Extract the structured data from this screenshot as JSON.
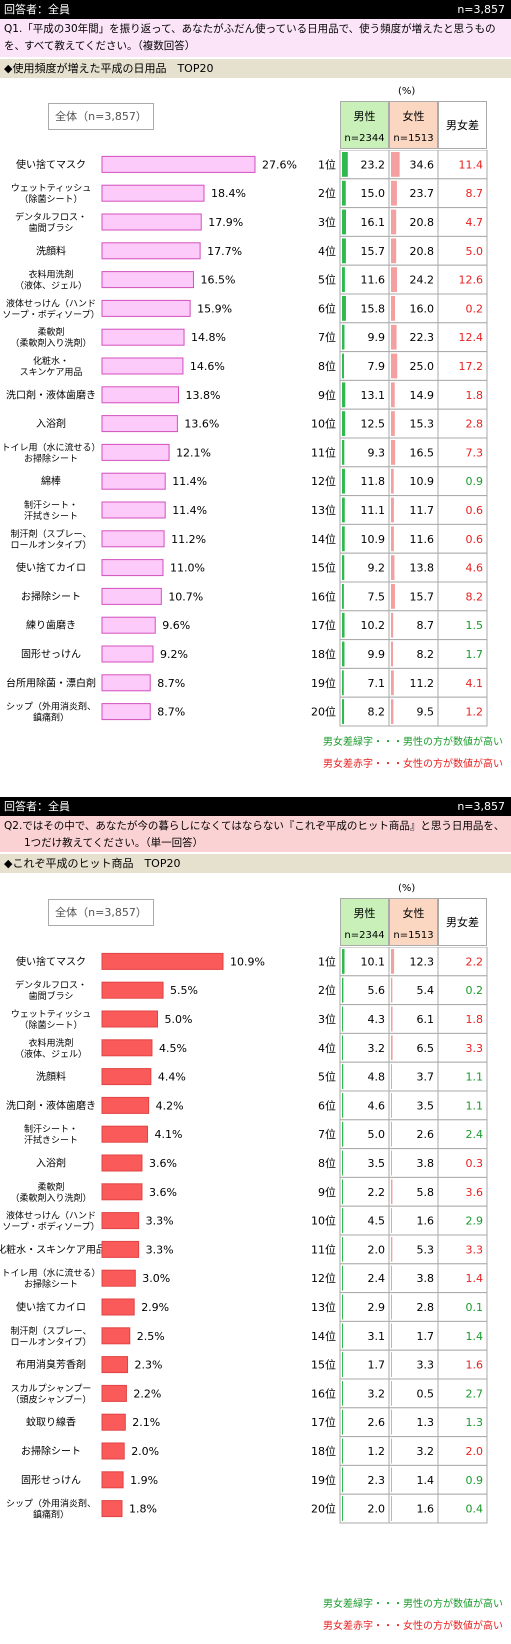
{
  "colors": {
    "green_text": "#1a9a2a",
    "red_text": "#e82020",
    "male_bar": "#2fb94f",
    "female_bar": "#f5a0a0",
    "q1_bar": "#fccbfa",
    "q2_bar": "#fa5a5a"
  },
  "unit": "(%)",
  "male_header": "男性",
  "female_header": "女性",
  "diff_header": "男女差",
  "male_n": "n=2344",
  "female_n": "n=1513",
  "note_green": "男女差緑字・・・男性の方が数値が高い",
  "note_red": "男女差赤字・・・女性の方が数値が高い",
  "q1": {
    "respondent": "回答者：全員",
    "n_total": "n=3,857",
    "question_line1": "Q1.「平成の30年間」を振り返って、あなたがふだん使っている日用品で、使う頻度が増えたと思うものを、",
    "question_line2": "すべて教えてください。（複数回答）",
    "subtitle": "◆使用頻度が増えた平成の日用品　TOP20",
    "total_label": "全体（n=3,857）"
  },
  "q2": {
    "respondent": "回答者：全員",
    "n_total": "n=3,857",
    "question_line1": "Q2.ではその中で、あなたが今の暮らしになくてはならない『これぞ平成のヒット商品』と思う日用品を、",
    "question_line2": "1つだけ教えてください。（単一回答）",
    "subtitle": "◆これぞ平成のヒット商品　TOP20",
    "total_label": "全体（n=3,857）"
  },
  "chart_data": [
    {
      "type": "bar",
      "title": "使用頻度が増えた平成の日用品　TOP20",
      "categories": [
        "使い捨てマスク",
        "ウェットティッシュ\n（除菌シート）",
        "デンタルフロス・\n歯間ブラシ",
        "洗顔料",
        "衣料用洗剤\n（液体、ジェル）",
        "液体せっけん（ハンド\nソープ・ボディソープ）",
        "柔軟剤\n（柔軟剤入り洗剤）",
        "化粧水・\nスキンケア用品",
        "洗口剤・液体歯磨き",
        "入浴剤",
        "トイレ用（水に流せる）\nお掃除シート",
        "綿棒",
        "制汗シート・\n汗拭きシート",
        "制汗剤（スプレー、\nロールオンタイプ）",
        "使い捨てカイロ",
        "お掃除シート",
        "練り歯磨き",
        "固形せっけん",
        "台所用除菌・漂白剤",
        "シップ（外用消炎剤、\n鎮痛剤）"
      ],
      "values": [
        27.6,
        18.4,
        17.9,
        17.7,
        16.5,
        15.9,
        14.8,
        14.6,
        13.8,
        13.6,
        12.1,
        11.4,
        11.4,
        11.2,
        11.0,
        10.7,
        9.6,
        9.2,
        8.7,
        8.7
      ],
      "value_labels": [
        "27.6%",
        "18.4%",
        "17.9%",
        "17.7%",
        "16.5%",
        "15.9%",
        "14.8%",
        "14.6%",
        "13.8%",
        "13.6%",
        "12.1%",
        "11.4%",
        "11.4%",
        "11.2%",
        "11.0%",
        "10.7%",
        "9.6%",
        "9.2%",
        "8.7%",
        "8.7%"
      ],
      "ranks": [
        "1位",
        "2位",
        "3位",
        "4位",
        "5位",
        "6位",
        "7位",
        "8位",
        "9位",
        "10位",
        "11位",
        "12位",
        "13位",
        "14位",
        "15位",
        "16位",
        "17位",
        "18位",
        "19位",
        "20位"
      ],
      "male": [
        23.2,
        15.0,
        16.1,
        15.7,
        11.6,
        15.8,
        9.9,
        7.9,
        13.1,
        12.5,
        9.3,
        11.8,
        11.1,
        10.9,
        9.2,
        7.5,
        10.2,
        9.9,
        7.1,
        8.2
      ],
      "female": [
        34.6,
        23.7,
        20.8,
        20.8,
        24.2,
        16.0,
        22.3,
        25.0,
        14.9,
        15.3,
        16.5,
        10.9,
        11.7,
        11.6,
        13.8,
        15.7,
        8.7,
        8.2,
        11.2,
        9.5
      ],
      "diff": [
        11.4,
        8.7,
        4.7,
        5.0,
        12.6,
        0.2,
        12.4,
        17.2,
        1.8,
        2.8,
        7.3,
        0.9,
        0.6,
        0.6,
        4.6,
        8.2,
        1.5,
        1.7,
        4.1,
        1.2
      ],
      "diff_color": [
        "red",
        "red",
        "red",
        "red",
        "red",
        "red",
        "red",
        "red",
        "red",
        "red",
        "red",
        "green",
        "red",
        "red",
        "red",
        "red",
        "green",
        "green",
        "red",
        "red"
      ],
      "max_value": 27.6
    },
    {
      "type": "bar",
      "title": "これぞ平成のヒット商品　TOP20",
      "categories": [
        "使い捨てマスク",
        "デンタルフロス・\n歯間ブラシ",
        "ウェットティッシュ\n（除菌シート）",
        "衣料用洗剤\n（液体、ジェル）",
        "洗顔料",
        "洗口剤・液体歯磨き",
        "制汗シート・\n汗拭きシート",
        "入浴剤",
        "柔軟剤\n（柔軟剤入り洗剤）",
        "液体せっけん（ハンド\nソープ・ボディソープ）",
        "化粧水・スキンケア用品",
        "トイレ用（水に流せる）\nお掃除シート",
        "使い捨てカイロ",
        "制汗剤（スプレー、\nロールオンタイプ）",
        "布用消臭芳香剤",
        "スカルプシャンプー\n（頭皮シャンプー）",
        "蚊取り線香",
        "お掃除シート",
        "固形せっけん",
        "シップ（外用消炎剤、\n鎮痛剤）"
      ],
      "values": [
        10.9,
        5.5,
        5.0,
        4.5,
        4.4,
        4.2,
        4.1,
        3.6,
        3.6,
        3.3,
        3.3,
        3.0,
        2.9,
        2.5,
        2.3,
        2.2,
        2.1,
        2.0,
        1.9,
        1.8
      ],
      "value_labels": [
        "10.9%",
        "5.5%",
        "5.0%",
        "4.5%",
        "4.4%",
        "4.2%",
        "4.1%",
        "3.6%",
        "3.6%",
        "3.3%",
        "3.3%",
        "3.0%",
        "2.9%",
        "2.5%",
        "2.3%",
        "2.2%",
        "2.1%",
        "2.0%",
        "1.9%",
        "1.8%"
      ],
      "ranks": [
        "1位",
        "2位",
        "3位",
        "4位",
        "5位",
        "6位",
        "7位",
        "8位",
        "9位",
        "10位",
        "11位",
        "12位",
        "13位",
        "14位",
        "15位",
        "16位",
        "17位",
        "18位",
        "19位",
        "20位"
      ],
      "male": [
        10.1,
        5.6,
        4.3,
        3.2,
        4.8,
        4.6,
        5.0,
        3.5,
        2.2,
        4.5,
        2.0,
        2.4,
        2.9,
        3.1,
        1.7,
        3.2,
        2.6,
        1.2,
        2.3,
        2.0
      ],
      "female": [
        12.3,
        5.4,
        6.1,
        6.5,
        3.7,
        3.5,
        2.6,
        3.8,
        5.8,
        1.6,
        5.3,
        3.8,
        2.8,
        1.7,
        3.3,
        0.5,
        1.3,
        3.2,
        1.4,
        1.6
      ],
      "diff": [
        2.2,
        0.2,
        1.8,
        3.3,
        1.1,
        1.1,
        2.4,
        0.3,
        3.6,
        2.9,
        3.3,
        1.4,
        0.1,
        1.4,
        1.6,
        2.7,
        1.3,
        2.0,
        0.9,
        0.4
      ],
      "diff_color": [
        "red",
        "green",
        "red",
        "red",
        "green",
        "green",
        "green",
        "red",
        "red",
        "green",
        "red",
        "red",
        "green",
        "green",
        "red",
        "green",
        "green",
        "red",
        "green",
        "green"
      ],
      "max_value": 10.9
    }
  ]
}
